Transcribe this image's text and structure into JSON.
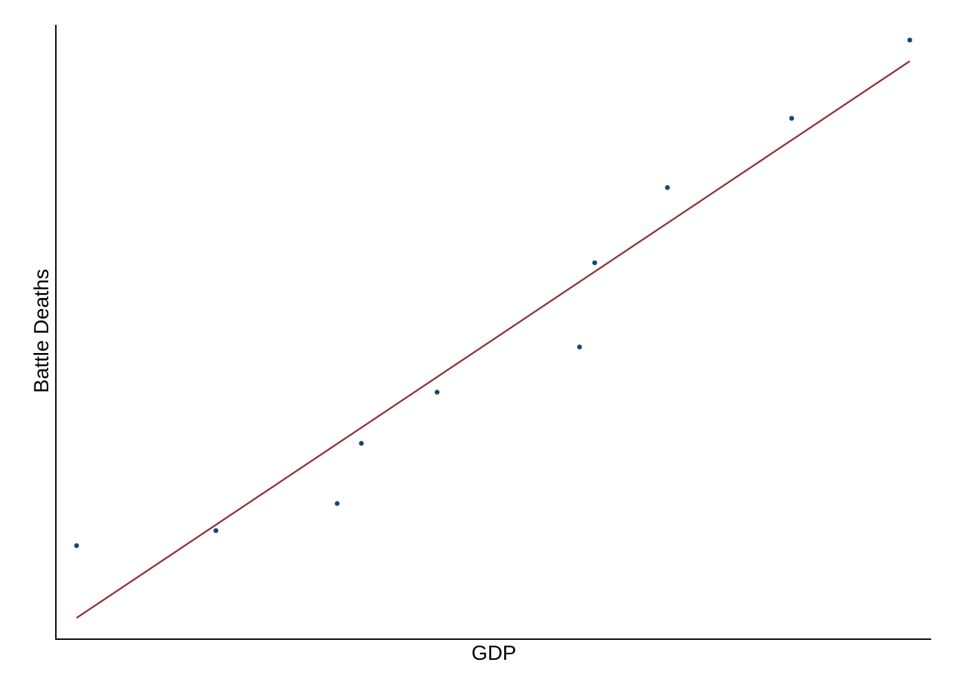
{
  "chart_data": {
    "type": "scatter",
    "xlabel": "GDP",
    "ylabel": "Battle Deaths",
    "xlim": [
      -0.5,
      28
    ],
    "ylim": [
      -0.5,
      19.5
    ],
    "ticks_shown": false,
    "grid": false,
    "legend": "none",
    "colors": {
      "points": "#1a476f",
      "fit_line": "#90353b",
      "axes": "#000000"
    },
    "series": [
      {
        "type": "scatter",
        "x": [
          0.0,
          4.6,
          8.6,
          9.4,
          11.9,
          16.6,
          17.1,
          19.5,
          23.6,
          27.5
        ],
        "y": [
          2.4,
          2.9,
          3.8,
          5.8,
          7.5,
          9.0,
          11.8,
          14.3,
          16.6,
          19.2
        ]
      },
      {
        "type": "line",
        "x": [
          0.0,
          27.5
        ],
        "y": [
          0.0,
          18.5
        ]
      }
    ]
  }
}
